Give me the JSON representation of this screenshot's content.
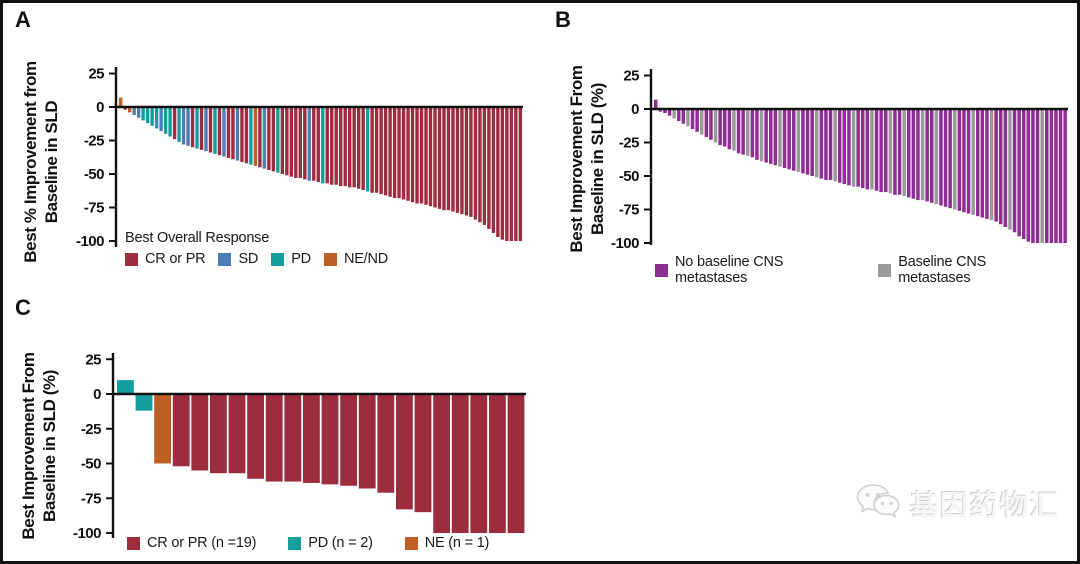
{
  "figure": {
    "watermark": {
      "icon": "wechat-icon",
      "text": "基因药物汇"
    }
  },
  "colors": {
    "cr": "#9d2c3f",
    "sd": "#4e7db5",
    "pd": "#149e9e",
    "ne": "#c05f23",
    "nc": "#8e2d93",
    "bc": "#9a9a9a",
    "axis": "#111111"
  },
  "chart_data": [
    {
      "id": "A",
      "type": "bar",
      "panel_label": "A",
      "ylabel_lines": [
        "Best % Improvement from",
        "Baseline in SLD"
      ],
      "yticks": [
        25,
        0,
        -25,
        -50,
        -75,
        -100
      ],
      "ylim": [
        -105,
        30
      ],
      "grid": false,
      "legend_title": "Best Overall Response",
      "legend": [
        {
          "label": "CR or PR",
          "key": "cr"
        },
        {
          "label": "SD",
          "key": "sd"
        },
        {
          "label": "PD",
          "key": "pd"
        },
        {
          "label": "NE/ND",
          "key": "ne"
        }
      ],
      "bars": {
        "values": [
          7,
          -2,
          -4,
          -6,
          -8,
          -10,
          -12,
          -14,
          -16,
          -18,
          -20,
          -22,
          -24,
          -26,
          -28,
          -29,
          -30,
          -31,
          -32,
          -33,
          -34,
          -35,
          -36,
          -37,
          -38,
          -39,
          -40,
          -41,
          -42,
          -43,
          -44,
          -45,
          -46,
          -47,
          -48,
          -49,
          -50,
          -51,
          -52,
          -53,
          -53,
          -54,
          -55,
          -55,
          -56,
          -57,
          -57,
          -58,
          -58,
          -59,
          -59,
          -60,
          -60,
          -61,
          -62,
          -63,
          -64,
          -64,
          -65,
          -66,
          -67,
          -68,
          -68,
          -69,
          -70,
          -71,
          -72,
          -72,
          -73,
          -74,
          -75,
          -76,
          -77,
          -77,
          -78,
          -79,
          -80,
          -81,
          -82,
          -84,
          -86,
          -88,
          -91,
          -94,
          -97,
          -99,
          -100,
          -100,
          -100,
          -100
        ],
        "cats": [
          "ne",
          "cr",
          "ne",
          "sd",
          "sd",
          "pd",
          "pd",
          "pd",
          "pd",
          "sd",
          "pd",
          "pd",
          "cr",
          "pd",
          "sd",
          "sd",
          "cr",
          "pd",
          "cr",
          "sd",
          "cr",
          "pd",
          "cr",
          "sd",
          "cr",
          "cr",
          "sd",
          "cr",
          "cr",
          "pd",
          "ne",
          "cr",
          "sd",
          "cr",
          "cr",
          "pd",
          "cr",
          "cr",
          "cr",
          "cr",
          "cr",
          "cr",
          "sd",
          "cr",
          "cr",
          "pd",
          "cr",
          "cr",
          "cr",
          "cr",
          "cr",
          "cr",
          "cr",
          "cr",
          "cr",
          "pd",
          "cr",
          "cr",
          "cr",
          "cr",
          "cr",
          "cr",
          "cr",
          "cr",
          "cr",
          "cr",
          "cr",
          "cr",
          "cr",
          "cr",
          "cr",
          "cr",
          "cr",
          "cr",
          "cr",
          "cr",
          "cr",
          "cr",
          "cr",
          "cr",
          "cr",
          "cr",
          "cr",
          "cr",
          "cr",
          "cr",
          "cr",
          "cr",
          "cr",
          "cr"
        ]
      }
    },
    {
      "id": "B",
      "type": "bar",
      "panel_label": "B",
      "ylabel_lines": [
        "Best Improvement From",
        "Baseline in SLD (%)"
      ],
      "yticks": [
        25,
        0,
        -25,
        -50,
        -75,
        -100
      ],
      "ylim": [
        -105,
        30
      ],
      "grid": false,
      "legend_title": "",
      "legend": [
        {
          "label": "No baseline CNS metastases",
          "key": "nc"
        },
        {
          "label": "Baseline CNS metastases",
          "key": "bc"
        }
      ],
      "bars": {
        "values": [
          7,
          -2,
          -3,
          -5,
          -7,
          -9,
          -11,
          -13,
          -15,
          -17,
          -19,
          -21,
          -23,
          -25,
          -27,
          -28,
          -30,
          -31,
          -33,
          -34,
          -35,
          -36,
          -38,
          -39,
          -40,
          -41,
          -42,
          -43,
          -44,
          -45,
          -46,
          -47,
          -48,
          -49,
          -50,
          -51,
          -52,
          -53,
          -53,
          -54,
          -55,
          -56,
          -57,
          -58,
          -58,
          -59,
          -60,
          -60,
          -61,
          -62,
          -62,
          -63,
          -64,
          -64,
          -65,
          -66,
          -67,
          -68,
          -68,
          -69,
          -70,
          -71,
          -72,
          -73,
          -74,
          -75,
          -76,
          -77,
          -78,
          -79,
          -80,
          -81,
          -82,
          -83,
          -84,
          -86,
          -88,
          -90,
          -92,
          -95,
          -97,
          -99,
          -100,
          -100,
          -100,
          -100,
          -100,
          -100,
          -100,
          -100
        ],
        "cats": [
          "nc",
          "nc",
          "nc",
          "nc",
          "bc",
          "nc",
          "nc",
          "bc",
          "nc",
          "nc",
          "bc",
          "nc",
          "nc",
          "bc",
          "nc",
          "nc",
          "nc",
          "bc",
          "nc",
          "nc",
          "bc",
          "nc",
          "nc",
          "bc",
          "nc",
          "nc",
          "nc",
          "bc",
          "nc",
          "nc",
          "nc",
          "bc",
          "nc",
          "nc",
          "nc",
          "bc",
          "nc",
          "nc",
          "nc",
          "bc",
          "nc",
          "nc",
          "nc",
          "bc",
          "nc",
          "nc",
          "nc",
          "bc",
          "nc",
          "nc",
          "nc",
          "bc",
          "nc",
          "nc",
          "bc",
          "nc",
          "nc",
          "nc",
          "bc",
          "nc",
          "nc",
          "bc",
          "nc",
          "nc",
          "nc",
          "bc",
          "nc",
          "nc",
          "nc",
          "bc",
          "nc",
          "nc",
          "nc",
          "bc",
          "nc",
          "nc",
          "nc",
          "bc",
          "nc",
          "nc",
          "nc",
          "nc",
          "nc",
          "nc",
          "bc",
          "nc",
          "nc",
          "nc",
          "nc",
          "nc"
        ]
      }
    },
    {
      "id": "C",
      "type": "bar",
      "panel_label": "C",
      "ylabel_lines": [
        "Best Improvement From",
        "Baseline in SLD (%)"
      ],
      "yticks": [
        25,
        0,
        -25,
        -50,
        -75,
        -100
      ],
      "ylim": [
        -105,
        30
      ],
      "grid": false,
      "legend_title": "",
      "legend": [
        {
          "label": "CR or PR (n =19)",
          "key": "cr"
        },
        {
          "label": "PD (n = 2)",
          "key": "pd"
        },
        {
          "label": "NE (n = 1)",
          "key": "ne"
        }
      ],
      "bars": {
        "values": [
          10,
          -12,
          -50,
          -52,
          -55,
          -57,
          -57,
          -61,
          -63,
          -63,
          -64,
          -65,
          -66,
          -68,
          -71,
          -83,
          -85,
          -100,
          -100,
          -100,
          -100,
          -100
        ],
        "cats": [
          "pd",
          "pd",
          "ne",
          "cr",
          "cr",
          "cr",
          "cr",
          "cr",
          "cr",
          "cr",
          "cr",
          "cr",
          "cr",
          "cr",
          "cr",
          "cr",
          "cr",
          "cr",
          "cr",
          "cr",
          "cr",
          "cr"
        ]
      }
    }
  ]
}
